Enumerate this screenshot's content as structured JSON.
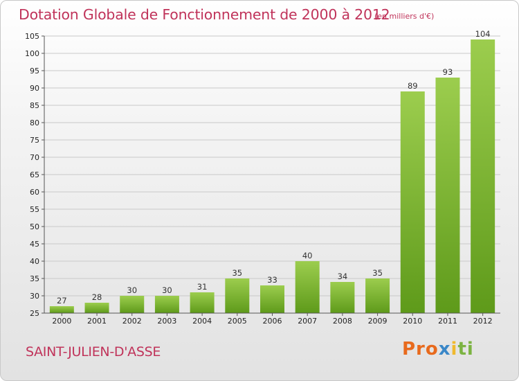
{
  "chart_data": {
    "type": "bar",
    "title": "Dotation Globale de Fonctionnement de 2000 à 2012",
    "subtitle": "(en milliers d'€)",
    "categories": [
      "2000",
      "2001",
      "2002",
      "2003",
      "2004",
      "2005",
      "2006",
      "2007",
      "2008",
      "2009",
      "2010",
      "2011",
      "2012"
    ],
    "values": [
      27,
      28,
      30,
      30,
      31,
      35,
      33,
      40,
      34,
      35,
      89,
      93,
      104
    ],
    "ylim": [
      25,
      105
    ],
    "yticks": [
      25,
      30,
      35,
      40,
      45,
      50,
      55,
      60,
      65,
      70,
      75,
      80,
      85,
      90,
      95,
      100,
      105
    ],
    "grid": true,
    "bar_color": "#7ab532",
    "xlabel": "",
    "ylabel": ""
  },
  "footer": {
    "commune": "SAINT-JULIEN-D'ASSE",
    "logo": [
      "Pro",
      "x",
      "i",
      "ti"
    ]
  },
  "colors": {
    "title": "#c0335a",
    "bar_light": "#9ccd4e",
    "bar_dark": "#5e9a1a"
  }
}
